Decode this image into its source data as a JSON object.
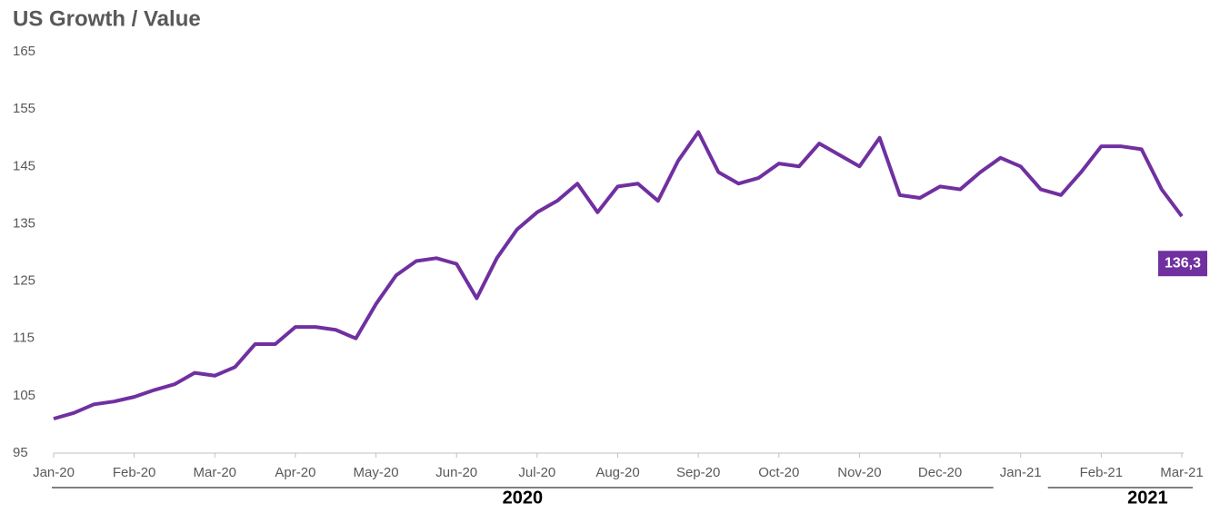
{
  "chart_data": {
    "type": "line",
    "title": "US Growth / Value",
    "categories": [
      "Jan-20",
      null,
      null,
      null,
      "Feb-20",
      null,
      null,
      null,
      "Mar-20",
      null,
      null,
      null,
      "Apr-20",
      null,
      null,
      null,
      "May-20",
      null,
      null,
      null,
      "Jun-20",
      null,
      null,
      null,
      "Jul-20",
      null,
      null,
      null,
      "Aug-20",
      null,
      null,
      null,
      "Sep-20",
      null,
      null,
      null,
      "Oct-20",
      null,
      null,
      null,
      "Nov-20",
      null,
      null,
      null,
      "Dec-20",
      null,
      null,
      null,
      "Jan-21",
      null,
      null,
      null,
      "Feb-21",
      null,
      null,
      null,
      "Mar-21"
    ],
    "series": [
      {
        "name": "US Growth / Value",
        "color": "#7030a0",
        "values": [
          101,
          102,
          103.5,
          104,
          104.8,
          106,
          107,
          109,
          108.5,
          110,
          114,
          114,
          117,
          117,
          116.5,
          115,
          121,
          126,
          128.5,
          129,
          128,
          122,
          129,
          134,
          137,
          139,
          142,
          137,
          141.5,
          142,
          139,
          146,
          151,
          144,
          142,
          143,
          145.5,
          145,
          149,
          147,
          145,
          150,
          140,
          139.5,
          141.5,
          141,
          144,
          146.5,
          145,
          141,
          140,
          144,
          148.5,
          148.5,
          148,
          141,
          136.3
        ],
        "value_labels": [
          null,
          null,
          null,
          null,
          null,
          null,
          null,
          null,
          null,
          null,
          null,
          null,
          null,
          null,
          null,
          null,
          null,
          null,
          null,
          null,
          null,
          null,
          null,
          null,
          null,
          null,
          null,
          null,
          null,
          null,
          null,
          null,
          null,
          null,
          null,
          null,
          null,
          null,
          null,
          null,
          null,
          null,
          null,
          null,
          null,
          null,
          null,
          null,
          null,
          null,
          null,
          null,
          null,
          null,
          null,
          null,
          "136,3"
        ]
      }
    ],
    "years": [
      "2020",
      "2021"
    ],
    "ylim": [
      95,
      165
    ],
    "yticks": [
      95,
      105,
      115,
      125,
      135,
      145,
      155,
      165
    ],
    "grid": false
  }
}
